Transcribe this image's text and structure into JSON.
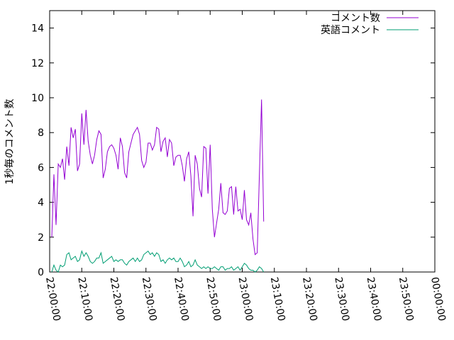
{
  "chart_data": {
    "type": "line",
    "ylabel": "1秒毎のコメント数",
    "xlabel": "",
    "ylim": [
      0,
      15
    ],
    "yticks": [
      0,
      2,
      4,
      6,
      8,
      10,
      12,
      14
    ],
    "xlim": [
      "22:00:00",
      "00:00:00"
    ],
    "xticks": [
      "22:00:00",
      "22:10:00",
      "22:20:00",
      "22:30:00",
      "22:40:00",
      "22:50:00",
      "23:00:00",
      "23:10:00",
      "23:20:00",
      "23:30:00",
      "23:40:00",
      "23:50:00",
      "00:00:00"
    ],
    "legend_position": "top-right",
    "grid": false,
    "series": [
      {
        "name": "コメント数",
        "color": "#9400d3",
        "points": [
          [
            "22:00:40",
            2.0
          ],
          [
            "22:01:20",
            5.6
          ],
          [
            "22:02:00",
            2.7
          ],
          [
            "22:02:40",
            6.2
          ],
          [
            "22:03:20",
            6.0
          ],
          [
            "22:04:00",
            6.5
          ],
          [
            "22:04:40",
            5.3
          ],
          [
            "22:05:20",
            7.2
          ],
          [
            "22:06:00",
            6.1
          ],
          [
            "22:06:40",
            8.3
          ],
          [
            "22:07:20",
            7.7
          ],
          [
            "22:08:00",
            8.2
          ],
          [
            "22:08:40",
            5.8
          ],
          [
            "22:09:20",
            6.2
          ],
          [
            "22:10:00",
            9.1
          ],
          [
            "22:10:40",
            7.3
          ],
          [
            "22:11:20",
            9.3
          ],
          [
            "22:12:00",
            7.5
          ],
          [
            "22:12:40",
            6.7
          ],
          [
            "22:13:20",
            6.2
          ],
          [
            "22:14:00",
            6.7
          ],
          [
            "22:14:40",
            7.6
          ],
          [
            "22:15:20",
            8.1
          ],
          [
            "22:16:00",
            7.9
          ],
          [
            "22:16:40",
            5.4
          ],
          [
            "22:17:20",
            5.9
          ],
          [
            "22:18:00",
            6.9
          ],
          [
            "22:18:40",
            7.2
          ],
          [
            "22:19:20",
            7.3
          ],
          [
            "22:20:00",
            7.1
          ],
          [
            "22:20:40",
            6.7
          ],
          [
            "22:21:20",
            5.9
          ],
          [
            "22:22:00",
            7.7
          ],
          [
            "22:22:40",
            7.2
          ],
          [
            "22:23:20",
            5.7
          ],
          [
            "22:24:00",
            5.4
          ],
          [
            "22:24:40",
            6.9
          ],
          [
            "22:25:20",
            7.4
          ],
          [
            "22:26:00",
            7.9
          ],
          [
            "22:26:40",
            8.1
          ],
          [
            "22:27:20",
            8.3
          ],
          [
            "22:28:00",
            7.9
          ],
          [
            "22:28:40",
            6.4
          ],
          [
            "22:29:20",
            6.0
          ],
          [
            "22:30:00",
            6.3
          ],
          [
            "22:30:40",
            7.4
          ],
          [
            "22:31:20",
            7.4
          ],
          [
            "22:32:00",
            7.0
          ],
          [
            "22:32:40",
            7.3
          ],
          [
            "22:33:20",
            8.3
          ],
          [
            "22:34:00",
            8.2
          ],
          [
            "22:34:40",
            6.9
          ],
          [
            "22:35:20",
            7.5
          ],
          [
            "22:36:00",
            7.7
          ],
          [
            "22:36:40",
            6.6
          ],
          [
            "22:37:20",
            7.6
          ],
          [
            "22:38:00",
            7.4
          ],
          [
            "22:38:40",
            6.1
          ],
          [
            "22:39:20",
            6.6
          ],
          [
            "22:40:00",
            6.7
          ],
          [
            "22:40:40",
            6.7
          ],
          [
            "22:41:20",
            6.1
          ],
          [
            "22:42:00",
            5.2
          ],
          [
            "22:42:40",
            6.5
          ],
          [
            "22:43:20",
            6.9
          ],
          [
            "22:44:00",
            5.5
          ],
          [
            "22:44:40",
            3.2
          ],
          [
            "22:45:20",
            6.7
          ],
          [
            "22:46:00",
            6.2
          ],
          [
            "22:46:40",
            4.8
          ],
          [
            "22:47:20",
            4.3
          ],
          [
            "22:48:00",
            7.2
          ],
          [
            "22:48:40",
            7.1
          ],
          [
            "22:49:20",
            4.5
          ],
          [
            "22:50:00",
            7.3
          ],
          [
            "22:50:40",
            3.6
          ],
          [
            "22:51:20",
            2.0
          ],
          [
            "22:52:00",
            2.8
          ],
          [
            "22:52:40",
            3.6
          ],
          [
            "22:53:20",
            5.1
          ],
          [
            "22:54:00",
            3.4
          ],
          [
            "22:54:40",
            3.3
          ],
          [
            "22:55:20",
            3.5
          ],
          [
            "22:56:00",
            4.8
          ],
          [
            "22:56:40",
            4.9
          ],
          [
            "22:57:20",
            3.3
          ],
          [
            "22:58:00",
            4.9
          ],
          [
            "22:58:40",
            3.5
          ],
          [
            "22:59:20",
            3.6
          ],
          [
            "23:00:00",
            3.0
          ],
          [
            "23:00:40",
            4.7
          ],
          [
            "23:01:20",
            3.0
          ],
          [
            "23:02:00",
            2.7
          ],
          [
            "23:02:40",
            3.4
          ],
          [
            "23:03:20",
            1.9
          ],
          [
            "23:04:00",
            1.0
          ],
          [
            "23:04:40",
            1.1
          ],
          [
            "23:05:20",
            5.5
          ],
          [
            "23:06:00",
            9.9
          ],
          [
            "23:06:40",
            2.9
          ]
        ]
      },
      {
        "name": "英語コメント",
        "color": "#009e73",
        "points": [
          [
            "22:00:40",
            0.0
          ],
          [
            "22:01:20",
            0.4
          ],
          [
            "22:02:00",
            0.1
          ],
          [
            "22:02:40",
            0.0
          ],
          [
            "22:03:20",
            0.4
          ],
          [
            "22:04:00",
            0.3
          ],
          [
            "22:04:40",
            0.4
          ],
          [
            "22:05:20",
            1.0
          ],
          [
            "22:06:00",
            1.1
          ],
          [
            "22:06:40",
            0.7
          ],
          [
            "22:07:20",
            0.8
          ],
          [
            "22:08:00",
            0.9
          ],
          [
            "22:08:40",
            0.6
          ],
          [
            "22:09:20",
            0.7
          ],
          [
            "22:10:00",
            1.2
          ],
          [
            "22:10:40",
            0.9
          ],
          [
            "22:11:20",
            1.1
          ],
          [
            "22:12:00",
            0.9
          ],
          [
            "22:12:40",
            0.6
          ],
          [
            "22:13:20",
            0.5
          ],
          [
            "22:14:00",
            0.6
          ],
          [
            "22:14:40",
            0.8
          ],
          [
            "22:15:20",
            0.8
          ],
          [
            "22:16:00",
            1.1
          ],
          [
            "22:16:40",
            0.5
          ],
          [
            "22:17:20",
            0.6
          ],
          [
            "22:18:00",
            0.7
          ],
          [
            "22:18:40",
            0.8
          ],
          [
            "22:19:20",
            0.9
          ],
          [
            "22:20:00",
            0.6
          ],
          [
            "22:20:40",
            0.7
          ],
          [
            "22:21:20",
            0.6
          ],
          [
            "22:22:00",
            0.7
          ],
          [
            "22:22:40",
            0.7
          ],
          [
            "22:23:20",
            0.5
          ],
          [
            "22:24:00",
            0.4
          ],
          [
            "22:24:40",
            0.6
          ],
          [
            "22:25:20",
            0.7
          ],
          [
            "22:26:00",
            0.8
          ],
          [
            "22:26:40",
            0.6
          ],
          [
            "22:27:20",
            0.8
          ],
          [
            "22:28:00",
            0.6
          ],
          [
            "22:28:40",
            0.7
          ],
          [
            "22:29:20",
            1.0
          ],
          [
            "22:30:00",
            1.1
          ],
          [
            "22:30:40",
            1.2
          ],
          [
            "22:31:20",
            1.0
          ],
          [
            "22:32:00",
            1.1
          ],
          [
            "22:32:40",
            0.9
          ],
          [
            "22:33:20",
            1.1
          ],
          [
            "22:34:00",
            1.0
          ],
          [
            "22:34:40",
            0.6
          ],
          [
            "22:35:20",
            0.7
          ],
          [
            "22:36:00",
            0.5
          ],
          [
            "22:36:40",
            0.7
          ],
          [
            "22:37:20",
            0.8
          ],
          [
            "22:38:00",
            0.7
          ],
          [
            "22:38:40",
            0.8
          ],
          [
            "22:39:20",
            0.6
          ],
          [
            "22:40:00",
            0.6
          ],
          [
            "22:40:40",
            0.8
          ],
          [
            "22:41:20",
            0.6
          ],
          [
            "22:42:00",
            0.3
          ],
          [
            "22:42:40",
            0.4
          ],
          [
            "22:43:20",
            0.6
          ],
          [
            "22:44:00",
            0.3
          ],
          [
            "22:44:40",
            0.4
          ],
          [
            "22:45:20",
            0.7
          ],
          [
            "22:46:00",
            0.4
          ],
          [
            "22:46:40",
            0.3
          ],
          [
            "22:47:20",
            0.2
          ],
          [
            "22:48:00",
            0.3
          ],
          [
            "22:48:40",
            0.2
          ],
          [
            "22:49:20",
            0.3
          ],
          [
            "22:50:00",
            0.2
          ],
          [
            "22:50:40",
            0.2
          ],
          [
            "22:51:20",
            0.3
          ],
          [
            "22:52:00",
            0.2
          ],
          [
            "22:52:40",
            0.1
          ],
          [
            "22:53:20",
            0.3
          ],
          [
            "22:54:00",
            0.3
          ],
          [
            "22:54:40",
            0.1
          ],
          [
            "22:55:20",
            0.2
          ],
          [
            "22:56:00",
            0.2
          ],
          [
            "22:56:40",
            0.3
          ],
          [
            "22:57:20",
            0.1
          ],
          [
            "22:58:00",
            0.2
          ],
          [
            "22:58:40",
            0.3
          ],
          [
            "22:59:20",
            0.1
          ],
          [
            "23:00:00",
            0.3
          ],
          [
            "23:00:40",
            0.5
          ],
          [
            "23:01:20",
            0.4
          ],
          [
            "23:02:00",
            0.2
          ],
          [
            "23:02:40",
            0.1
          ],
          [
            "23:03:20",
            0.1
          ],
          [
            "23:04:00",
            0.0
          ],
          [
            "23:04:40",
            0.1
          ],
          [
            "23:05:20",
            0.3
          ],
          [
            "23:06:00",
            0.2
          ],
          [
            "23:06:40",
            0.0
          ]
        ]
      }
    ]
  }
}
